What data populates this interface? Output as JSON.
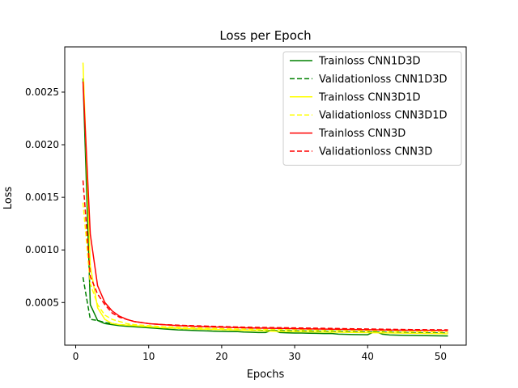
{
  "chart_data": {
    "type": "line",
    "title": "Loss per Epoch",
    "xlabel": "Epochs",
    "ylabel": "Loss",
    "xlim": [
      -1.5,
      53.5
    ],
    "ylim": [
      9.5e-05,
      0.00293
    ],
    "xticks": [
      0,
      10,
      20,
      30,
      40,
      50
    ],
    "xtick_labels": [
      "0",
      "10",
      "20",
      "30",
      "40",
      "50"
    ],
    "yticks": [
      0.0005,
      0.001,
      0.0015,
      0.002,
      0.0025
    ],
    "ytick_labels": [
      "0.0005",
      "0.0010",
      "0.0015",
      "0.0020",
      "0.0025"
    ],
    "grid": false,
    "legend_position": "upper right",
    "x": [
      1,
      2,
      3,
      4,
      5,
      6,
      7,
      8,
      9,
      10,
      11,
      12,
      13,
      14,
      15,
      16,
      17,
      18,
      19,
      20,
      21,
      22,
      23,
      24,
      25,
      26,
      27,
      28,
      29,
      30,
      31,
      32,
      33,
      34,
      35,
      36,
      37,
      38,
      39,
      40,
      41,
      42,
      43,
      44,
      45,
      46,
      47,
      48,
      49,
      50,
      51
    ],
    "series": [
      {
        "name": "Trainloss CNN1D3D",
        "color": "#008000",
        "dash": "solid",
        "values": [
          0.00263,
          0.00048,
          0.00033,
          0.0003,
          0.00029,
          0.00028,
          0.000275,
          0.00027,
          0.000265,
          0.00026,
          0.000255,
          0.00025,
          0.000245,
          0.00024,
          0.000238,
          0.000235,
          0.000232,
          0.00023,
          0.000228,
          0.000226,
          0.000224,
          0.000225,
          0.00022,
          0.000218,
          0.000215,
          0.000215,
          0.00024,
          0.000215,
          0.000212,
          0.00021,
          0.00021,
          0.000208,
          0.000207,
          0.000205,
          0.000206,
          0.0002,
          0.000198,
          0.000196,
          0.000195,
          0.000194,
          0.000225,
          0.0002,
          0.000192,
          0.00019,
          0.000188,
          0.000187,
          0.000186,
          0.000185,
          0.000184,
          0.000183,
          0.000182
        ]
      },
      {
        "name": "Validationloss CNN1D3D",
        "color": "#008000",
        "dash": "dashed",
        "values": [
          0.00074,
          0.00034,
          0.00033,
          0.00031,
          0.0003,
          0.00029,
          0.000285,
          0.00028,
          0.000275,
          0.00027,
          0.000265,
          0.00026,
          0.000258,
          0.000255,
          0.000252,
          0.00025,
          0.000248,
          0.000246,
          0.000244,
          0.000242,
          0.00024,
          0.000239,
          0.000238,
          0.000237,
          0.000236,
          0.000235,
          0.000234,
          0.000233,
          0.000232,
          0.000231,
          0.00023,
          0.000229,
          0.000228,
          0.000227,
          0.000226,
          0.000225,
          0.000224,
          0.000223,
          0.000222,
          0.000221,
          0.00022,
          0.000219,
          0.000218,
          0.000217,
          0.000216,
          0.000215,
          0.000214,
          0.000213,
          0.000212,
          0.000211,
          0.00021
        ]
      },
      {
        "name": "Trainloss CNN3D1D",
        "color": "#ffff00",
        "dash": "solid",
        "values": [
          0.00278,
          0.00085,
          0.00045,
          0.00034,
          0.0003,
          0.00029,
          0.000285,
          0.00028,
          0.000275,
          0.00027,
          0.000265,
          0.00026,
          0.000258,
          0.000255,
          0.000252,
          0.00025,
          0.000248,
          0.000246,
          0.000244,
          0.000242,
          0.00024,
          0.000238,
          0.000236,
          0.000234,
          0.000232,
          0.00023,
          0.000228,
          0.000226,
          0.000225,
          0.000224,
          0.000223,
          0.000222,
          0.000221,
          0.00022,
          0.000219,
          0.000218,
          0.000217,
          0.000216,
          0.000215,
          0.000214,
          0.000213,
          0.000212,
          0.000211,
          0.00021,
          0.000209,
          0.000208,
          0.000207,
          0.000206,
          0.000205,
          0.000204,
          0.000203
        ]
      },
      {
        "name": "Validationloss CNN3D1D",
        "color": "#ffff00",
        "dash": "dashed",
        "values": [
          0.00145,
          0.00068,
          0.00048,
          0.00038,
          0.00034,
          0.00032,
          0.0003,
          0.00029,
          0.000285,
          0.00028,
          0.000275,
          0.00027,
          0.000268,
          0.000265,
          0.000262,
          0.00026,
          0.000258,
          0.000256,
          0.000254,
          0.000252,
          0.00025,
          0.000249,
          0.000248,
          0.000247,
          0.000246,
          0.000245,
          0.000244,
          0.000243,
          0.000242,
          0.000241,
          0.00024,
          0.000239,
          0.000238,
          0.000237,
          0.000236,
          0.000235,
          0.000234,
          0.000233,
          0.000232,
          0.000231,
          0.00023,
          0.000229,
          0.000228,
          0.000227,
          0.000226,
          0.000225,
          0.000224,
          0.000223,
          0.000222,
          0.000221,
          0.00022
        ]
      },
      {
        "name": "Trainloss CNN3D",
        "color": "#ff0000",
        "dash": "solid",
        "values": [
          0.0026,
          0.00115,
          0.00066,
          0.0005,
          0.00042,
          0.00037,
          0.00034,
          0.00032,
          0.00031,
          0.0003,
          0.000295,
          0.00029,
          0.000285,
          0.00028,
          0.000278,
          0.000275,
          0.000272,
          0.00027,
          0.000268,
          0.000266,
          0.000264,
          0.000262,
          0.00026,
          0.000258,
          0.000257,
          0.000256,
          0.000255,
          0.000254,
          0.000253,
          0.000252,
          0.000251,
          0.00025,
          0.000249,
          0.000248,
          0.000247,
          0.000246,
          0.000245,
          0.000244,
          0.000243,
          0.000242,
          0.000241,
          0.00024,
          0.000239,
          0.000238,
          0.000237,
          0.000237,
          0.000236,
          0.000236,
          0.000235,
          0.000235,
          0.000234
        ]
      },
      {
        "name": "Validationloss CNN3D",
        "color": "#ff0000",
        "dash": "dashed",
        "values": [
          0.00166,
          0.00075,
          0.00058,
          0.00048,
          0.0004,
          0.00036,
          0.00034,
          0.00032,
          0.00031,
          0.0003,
          0.000295,
          0.00029,
          0.000288,
          0.000285,
          0.000282,
          0.00028,
          0.000278,
          0.000276,
          0.000274,
          0.000272,
          0.00027,
          0.000268,
          0.000266,
          0.000265,
          0.000264,
          0.000263,
          0.000262,
          0.000261,
          0.00026,
          0.000259,
          0.000258,
          0.000257,
          0.000256,
          0.000255,
          0.000254,
          0.000253,
          0.000252,
          0.000251,
          0.00025,
          0.000249,
          0.000248,
          0.000247,
          0.000246,
          0.000245,
          0.000244,
          0.000243,
          0.000243,
          0.000242,
          0.000242,
          0.000241,
          0.000241
        ]
      }
    ]
  }
}
